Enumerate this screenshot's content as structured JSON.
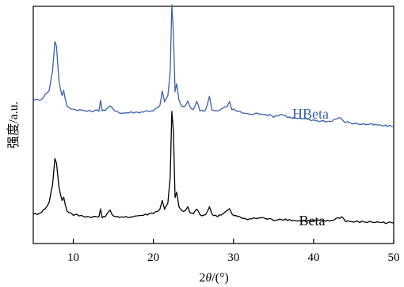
{
  "chart_data": {
    "type": "line",
    "xlabel": "2θ/(°)",
    "ylabel": "强度/a.u.",
    "xlim": [
      5,
      50
    ],
    "x_ticks": [
      10,
      20,
      30,
      40,
      50
    ],
    "y_tick_labels": false,
    "grid": false,
    "legend": "none",
    "series": [
      {
        "name": "HBeta",
        "color": "#3a5fb0",
        "baseline_offset": 1.0,
        "points": [
          [
            5,
            0.26
          ],
          [
            6,
            0.27
          ],
          [
            7,
            0.36
          ],
          [
            7.4,
            0.55
          ],
          [
            7.7,
            0.84
          ],
          [
            7.9,
            0.8
          ],
          [
            8.2,
            0.45
          ],
          [
            8.6,
            0.3
          ],
          [
            8.8,
            0.35
          ],
          [
            9.2,
            0.2
          ],
          [
            10,
            0.17
          ],
          [
            11,
            0.16
          ],
          [
            12,
            0.15
          ],
          [
            13.2,
            0.16
          ],
          [
            13.4,
            0.26
          ],
          [
            13.6,
            0.16
          ],
          [
            14,
            0.16
          ],
          [
            14.6,
            0.2
          ],
          [
            15,
            0.17
          ],
          [
            16,
            0.13
          ],
          [
            17,
            0.14
          ],
          [
            18,
            0.14
          ],
          [
            19,
            0.15
          ],
          [
            20,
            0.16
          ],
          [
            20.8,
            0.2
          ],
          [
            21.1,
            0.35
          ],
          [
            21.4,
            0.24
          ],
          [
            21.8,
            0.3
          ],
          [
            22.1,
            0.55
          ],
          [
            22.3,
            1.2
          ],
          [
            22.5,
            0.92
          ],
          [
            22.7,
            0.35
          ],
          [
            22.9,
            0.42
          ],
          [
            23.2,
            0.26
          ],
          [
            23.5,
            0.2
          ],
          [
            24,
            0.2
          ],
          [
            24.3,
            0.25
          ],
          [
            24.6,
            0.18
          ],
          [
            25,
            0.17
          ],
          [
            25.4,
            0.25
          ],
          [
            25.8,
            0.16
          ],
          [
            26.5,
            0.16
          ],
          [
            27,
            0.3
          ],
          [
            27.3,
            0.16
          ],
          [
            28,
            0.15
          ],
          [
            28.7,
            0.18
          ],
          [
            29.2,
            0.2
          ],
          [
            29.5,
            0.25
          ],
          [
            29.8,
            0.17
          ],
          [
            31,
            0.14
          ],
          [
            32,
            0.12
          ],
          [
            33.5,
            0.13
          ],
          [
            35,
            0.1
          ],
          [
            36,
            0.12
          ],
          [
            37,
            0.09
          ],
          [
            38,
            0.08
          ],
          [
            40,
            0.06
          ],
          [
            42,
            0.05
          ],
          [
            43.3,
            0.09
          ],
          [
            43.7,
            0.05
          ],
          [
            45,
            0.03
          ],
          [
            47,
            0.02
          ],
          [
            50,
            0.0
          ]
        ]
      },
      {
        "name": "Beta",
        "color": "#000000",
        "baseline_offset": 0.0,
        "points": [
          [
            5,
            0.08
          ],
          [
            6,
            0.1
          ],
          [
            7,
            0.2
          ],
          [
            7.4,
            0.38
          ],
          [
            7.7,
            0.64
          ],
          [
            7.9,
            0.6
          ],
          [
            8.2,
            0.35
          ],
          [
            8.6,
            0.22
          ],
          [
            8.8,
            0.25
          ],
          [
            9.2,
            0.12
          ],
          [
            10,
            0.08
          ],
          [
            11,
            0.07
          ],
          [
            12,
            0.06
          ],
          [
            13.2,
            0.06
          ],
          [
            13.4,
            0.14
          ],
          [
            13.6,
            0.06
          ],
          [
            14,
            0.07
          ],
          [
            14.6,
            0.12
          ],
          [
            15,
            0.07
          ],
          [
            16,
            0.05
          ],
          [
            17,
            0.06
          ],
          [
            18,
            0.07
          ],
          [
            19,
            0.08
          ],
          [
            20,
            0.1
          ],
          [
            20.8,
            0.13
          ],
          [
            21.1,
            0.22
          ],
          [
            21.4,
            0.14
          ],
          [
            21.8,
            0.2
          ],
          [
            22.1,
            0.45
          ],
          [
            22.3,
            1.1
          ],
          [
            22.5,
            0.9
          ],
          [
            22.7,
            0.25
          ],
          [
            22.9,
            0.3
          ],
          [
            23.2,
            0.15
          ],
          [
            23.5,
            0.12
          ],
          [
            24,
            0.12
          ],
          [
            24.3,
            0.15
          ],
          [
            24.6,
            0.1
          ],
          [
            25,
            0.09
          ],
          [
            25.4,
            0.14
          ],
          [
            25.8,
            0.08
          ],
          [
            26.5,
            0.08
          ],
          [
            27,
            0.16
          ],
          [
            27.3,
            0.08
          ],
          [
            28,
            0.07
          ],
          [
            28.7,
            0.09
          ],
          [
            29.2,
            0.12
          ],
          [
            29.5,
            0.14
          ],
          [
            29.8,
            0.08
          ],
          [
            31,
            0.05
          ],
          [
            32,
            0.04
          ],
          [
            33.5,
            0.05
          ],
          [
            35,
            0.03
          ],
          [
            36,
            0.04
          ],
          [
            37,
            0.03
          ],
          [
            38,
            0.02
          ],
          [
            40,
            0.02
          ],
          [
            42,
            0.02
          ],
          [
            43.5,
            0.06
          ],
          [
            44,
            0.02
          ],
          [
            45,
            0.01
          ],
          [
            47,
            0.01
          ],
          [
            50,
            0.0
          ]
        ]
      }
    ]
  }
}
